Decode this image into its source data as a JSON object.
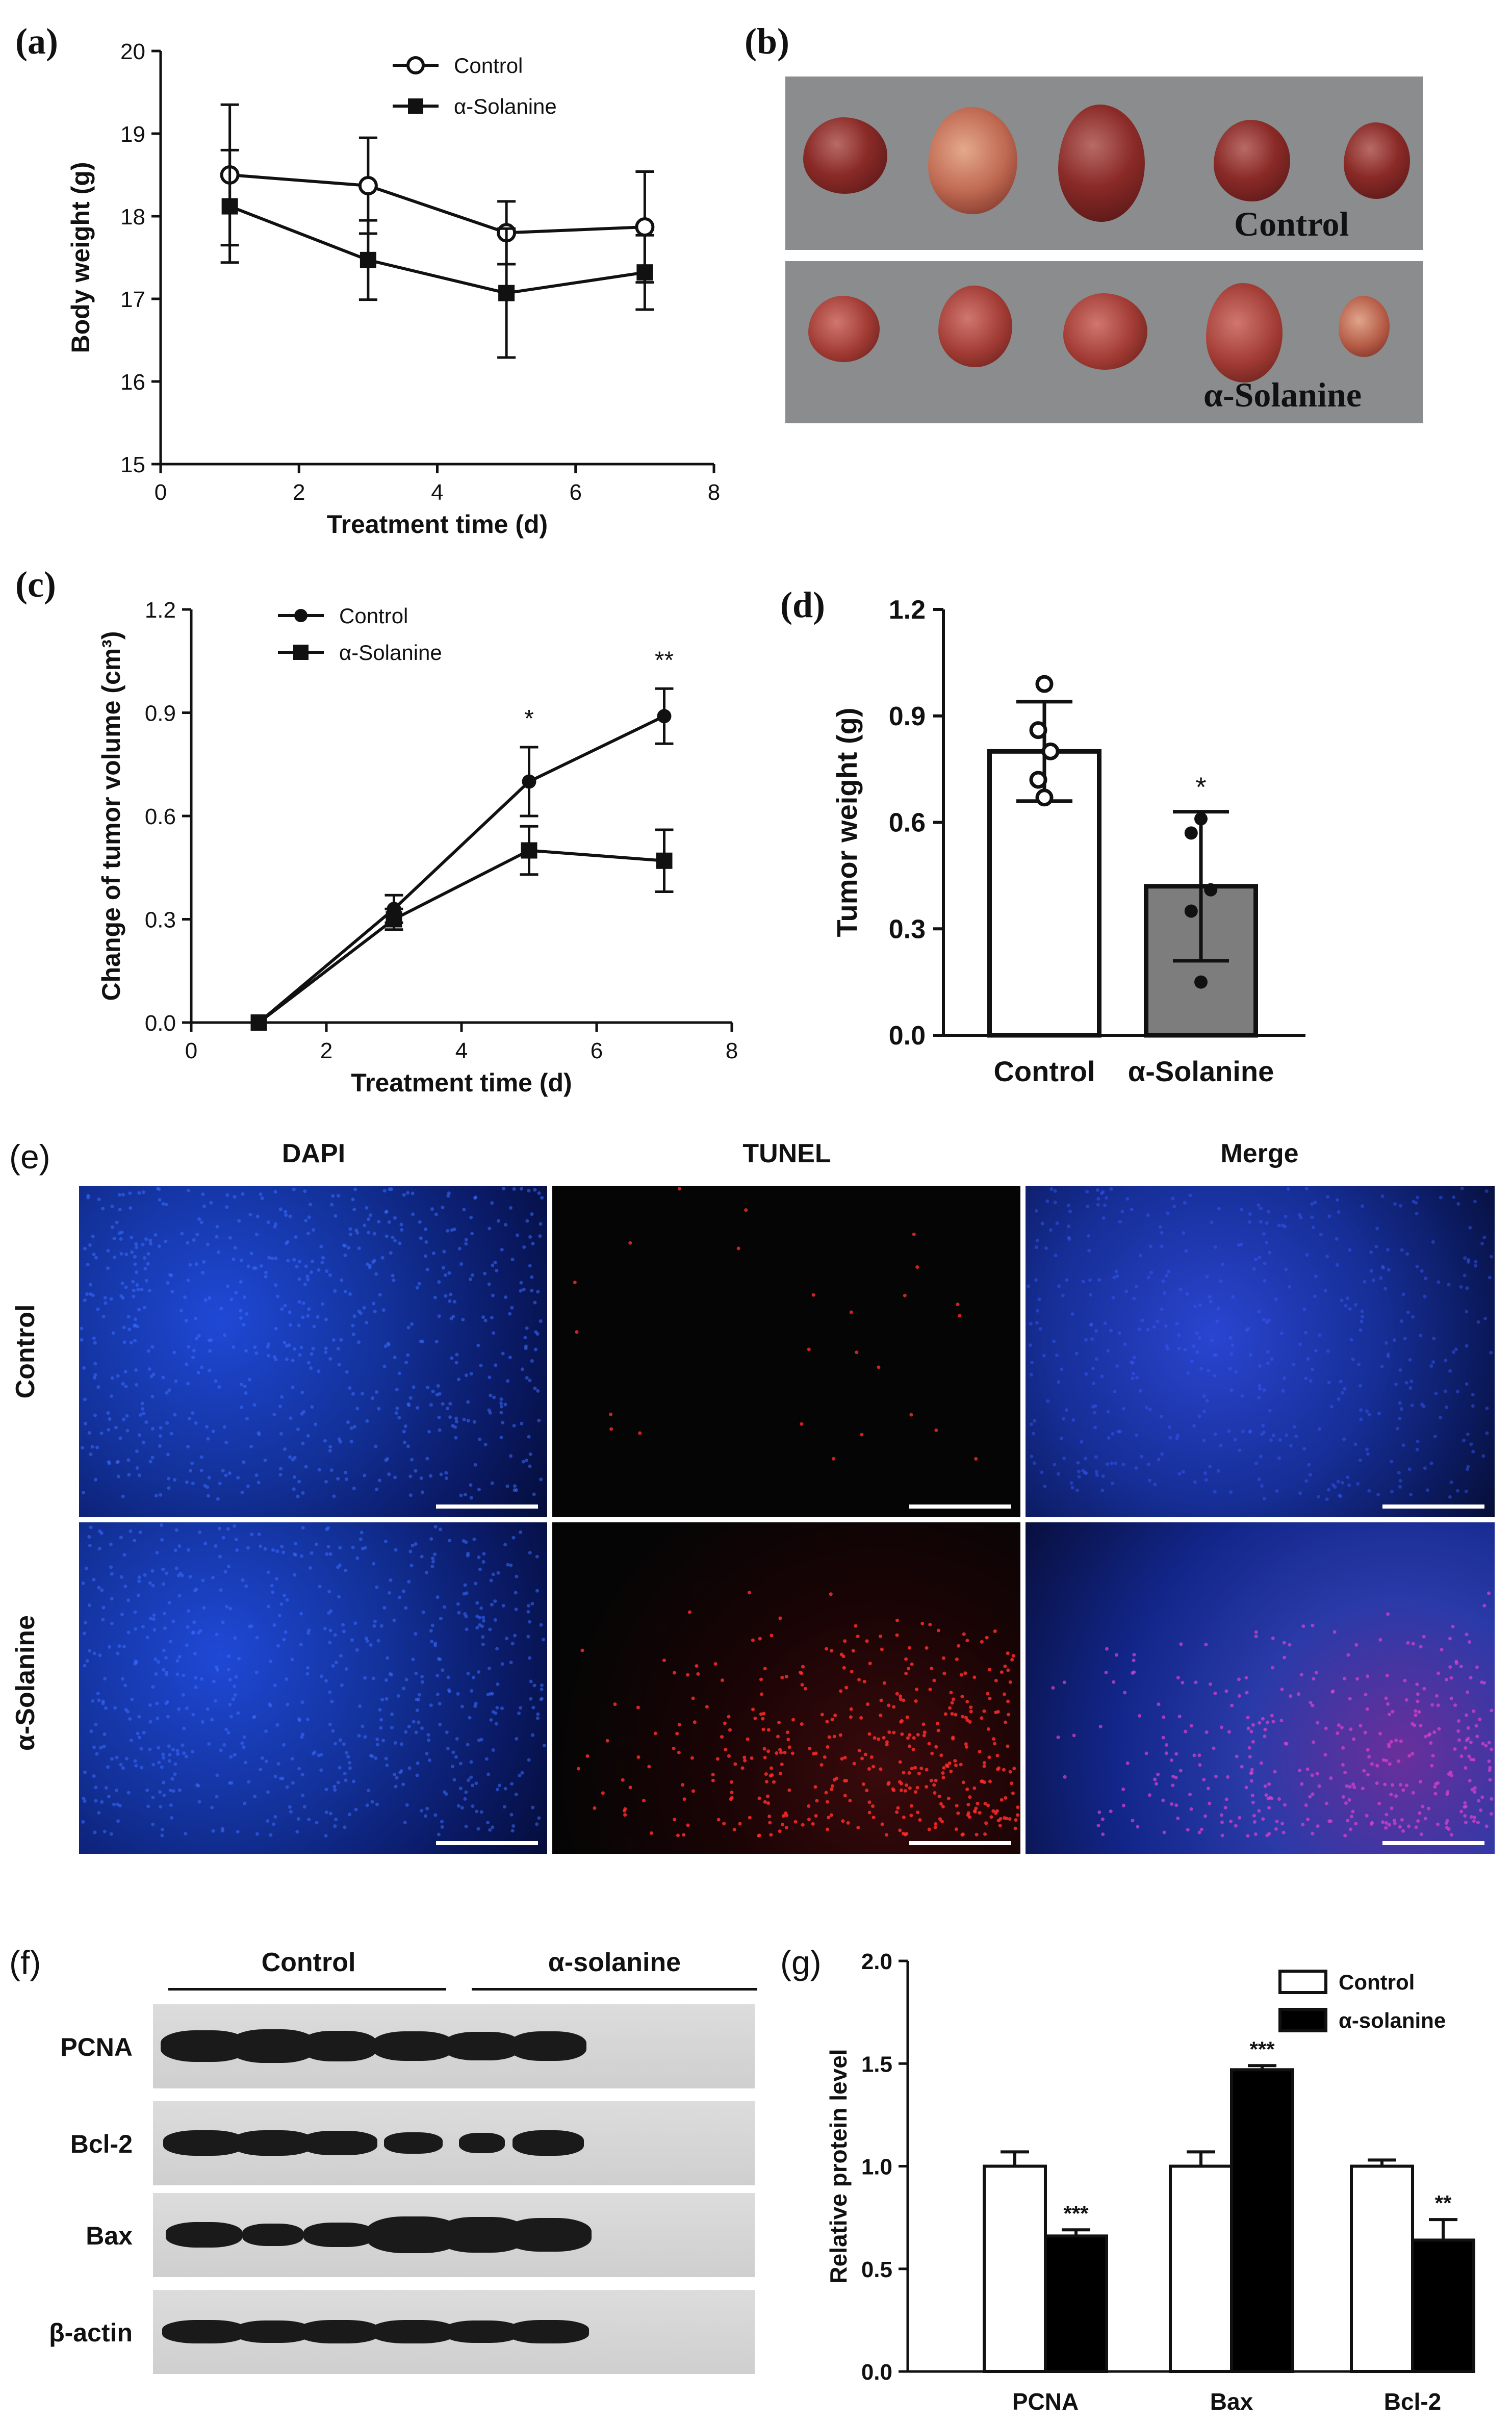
{
  "panels": {
    "a": "(a)",
    "b": "(b)",
    "c": "(c)",
    "d": "(d)",
    "e": "(e)",
    "f": "(f)",
    "g": "(g)"
  },
  "photo_b": {
    "top_label": "Control",
    "bottom_label": "α-Solanine"
  },
  "fluorescence_e": {
    "columns": [
      "DAPI",
      "TUNEL",
      "Merge"
    ],
    "rows": [
      "Control",
      "α-Solanine"
    ]
  },
  "blot_f": {
    "groups": [
      "Control",
      "α-solanine"
    ],
    "proteins": [
      "PCNA",
      "Bcl-2",
      "Bax",
      "β-actin"
    ]
  },
  "colors": {
    "axis": "#111111",
    "bar_dark": "#000000",
    "bar_grey": "#7d7d7d",
    "dapi": "#1f49d6",
    "tunel": "#e0202a"
  },
  "chart_data": [
    {
      "id": "a",
      "type": "line",
      "title": "",
      "xlabel": "Treatment time (d)",
      "ylabel": "Body weight (g)",
      "xlim": [
        0,
        8
      ],
      "ylim": [
        15,
        20
      ],
      "xticks": [
        "0",
        "2",
        "4",
        "6",
        "8"
      ],
      "yticks": [
        "15",
        "16",
        "17",
        "18",
        "19",
        "20"
      ],
      "series": [
        {
          "name": "Control",
          "marker": "open-circle",
          "x": [
            1,
            3,
            5,
            7
          ],
          "y": [
            18.5,
            18.37,
            17.8,
            17.87
          ],
          "err": [
            0.85,
            0.58,
            0.38,
            0.67
          ]
        },
        {
          "name": "α-Solanine",
          "marker": "filled-square",
          "x": [
            1,
            3,
            5,
            7
          ],
          "y": [
            18.12,
            17.47,
            17.07,
            17.32
          ],
          "err": [
            0.68,
            0.48,
            0.78,
            0.45
          ]
        }
      ]
    },
    {
      "id": "c",
      "type": "line",
      "title": "",
      "xlabel": "Treatment time (d)",
      "ylabel": "Change of tumor volume (cm³)",
      "xlim": [
        0,
        8
      ],
      "ylim": [
        0.0,
        1.2
      ],
      "xticks": [
        "0",
        "2",
        "4",
        "6",
        "8"
      ],
      "yticks": [
        "0.0",
        "0.3",
        "0.6",
        "0.9",
        "1.2"
      ],
      "annotations": [
        {
          "x": 5,
          "text": "*"
        },
        {
          "x": 7,
          "text": "**"
        }
      ],
      "series": [
        {
          "name": "Control",
          "marker": "filled-circle",
          "x": [
            1,
            3,
            5,
            7
          ],
          "y": [
            0.0,
            0.33,
            0.7,
            0.89
          ],
          "err": [
            0.0,
            0.04,
            0.1,
            0.08
          ]
        },
        {
          "name": "α-Solanine",
          "marker": "filled-square",
          "x": [
            1,
            3,
            5,
            7
          ],
          "y": [
            0.0,
            0.3,
            0.5,
            0.47
          ],
          "err": [
            0.0,
            0.03,
            0.07,
            0.09
          ]
        }
      ]
    },
    {
      "id": "d",
      "type": "bar",
      "title": "",
      "xlabel": "",
      "ylabel": "Tumor weight (g)",
      "ylim": [
        0.0,
        1.2
      ],
      "yticks": [
        "0.0",
        "0.3",
        "0.6",
        "0.9",
        "1.2"
      ],
      "categories": [
        "Control",
        "α-Solanine"
      ],
      "values": [
        0.8,
        0.42
      ],
      "err": [
        0.14,
        0.21
      ],
      "points": [
        [
          0.99,
          0.86,
          0.8,
          0.72,
          0.67
        ],
        [
          0.61,
          0.57,
          0.41,
          0.35,
          0.15
        ]
      ],
      "annotations": [
        {
          "category": "α-Solanine",
          "text": "*"
        }
      ]
    },
    {
      "id": "g",
      "type": "bar",
      "title": "",
      "xlabel": "",
      "ylabel": "Relative protein level",
      "ylim": [
        0.0,
        2.0
      ],
      "yticks": [
        "0.0",
        "0.5",
        "1.0",
        "1.5",
        "2.0"
      ],
      "categories": [
        "PCNA",
        "Bax",
        "Bcl-2"
      ],
      "series": [
        {
          "name": "Control",
          "values": [
            1.0,
            1.0,
            1.0
          ],
          "err": [
            0.07,
            0.07,
            0.03
          ]
        },
        {
          "name": "α-solanine",
          "values": [
            0.66,
            1.47,
            0.64
          ],
          "err": [
            0.03,
            0.02,
            0.1
          ]
        }
      ],
      "annotations": [
        "***",
        "***",
        "**"
      ]
    }
  ]
}
